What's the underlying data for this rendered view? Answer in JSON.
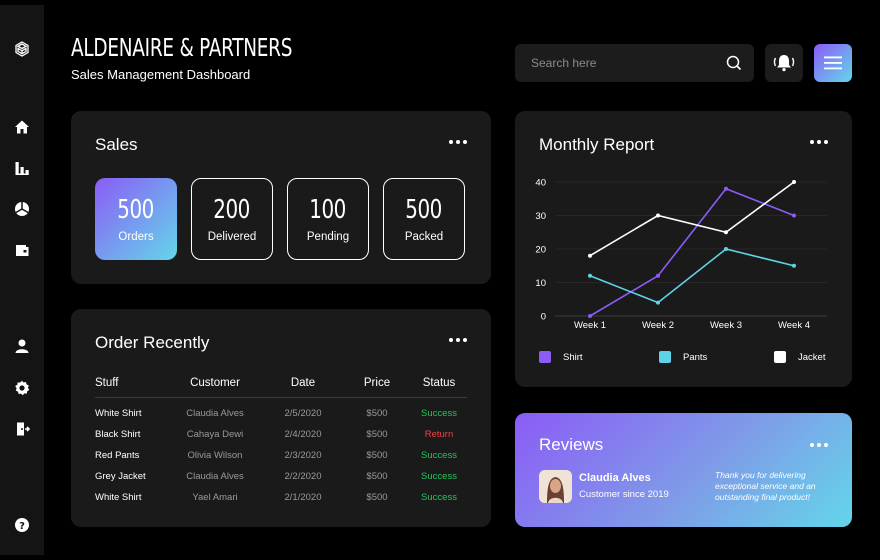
{
  "app": {
    "title": "ALDENAIRE & PARTNERS",
    "subtitle": "Sales Management Dashboard"
  },
  "sidebar": {
    "items": [
      {
        "icon": "logo-icon"
      },
      {
        "icon": "home-icon"
      },
      {
        "icon": "bar-chart-icon"
      },
      {
        "icon": "pie-chart-icon"
      },
      {
        "icon": "wallet-icon"
      },
      {
        "icon": "user-icon"
      },
      {
        "icon": "gear-icon"
      },
      {
        "icon": "logout-icon"
      },
      {
        "icon": "help-icon"
      }
    ]
  },
  "header": {
    "search_placeholder": "Search here",
    "search_value": ""
  },
  "sales": {
    "title": "Sales",
    "stats": [
      {
        "value": "500",
        "label": "Orders"
      },
      {
        "value": "200",
        "label": "Delivered"
      },
      {
        "value": "100",
        "label": "Pending"
      },
      {
        "value": "500",
        "label": "Packed"
      }
    ]
  },
  "orders": {
    "title": "Order Recently",
    "columns": [
      "Stuff",
      "Customer",
      "Date",
      "Price",
      "Status"
    ],
    "rows": [
      {
        "stuff": "White Shirt",
        "customer": "Claudia Alves",
        "date": "2/5/2020",
        "price": "$500",
        "status": "Success"
      },
      {
        "stuff": "Black Shirt",
        "customer": "Cahaya Dewi",
        "date": "2/4/2020",
        "price": "$500",
        "status": "Return"
      },
      {
        "stuff": "Red Pants",
        "customer": "Olivia Wilson",
        "date": "2/3/2020",
        "price": "$500",
        "status": "Success"
      },
      {
        "stuff": "Grey Jacket",
        "customer": "Claudia Alves",
        "date": "2/2/2020",
        "price": "$500",
        "status": "Success"
      },
      {
        "stuff": "White Shirt",
        "customer": "Yael Amari",
        "date": "2/1/2020",
        "price": "$500",
        "status": "Success"
      }
    ]
  },
  "monthly_report": {
    "title": "Monthly Report"
  },
  "chart_data": {
    "type": "line",
    "title": "Monthly Report",
    "categories": [
      "Week 1",
      "Week 2",
      "Week 3",
      "Week 4"
    ],
    "series": [
      {
        "name": "Shirt",
        "values": [
          0,
          12,
          38,
          30
        ],
        "color": "#8b5cf6"
      },
      {
        "name": "Pants",
        "values": [
          12,
          4,
          20,
          15
        ],
        "color": "#5fd3e6"
      },
      {
        "name": "Jacket",
        "values": [
          18,
          30,
          25,
          40
        ],
        "color": "#ffffff"
      }
    ],
    "yticks": [
      0,
      10,
      20,
      30,
      40
    ],
    "ylim": [
      0,
      40
    ],
    "grid": true,
    "legend": "bottom"
  },
  "reviews": {
    "title": "Reviews",
    "name": "Claudia Alves",
    "since": "Customer since 2019",
    "quote": "Thank you for delivering exceptional service and an outstanding final product!"
  },
  "colors": {
    "accent_purple": "#8b5cf6",
    "accent_cyan": "#63d6ea",
    "success": "#22c55e",
    "return": "#ef4444"
  }
}
